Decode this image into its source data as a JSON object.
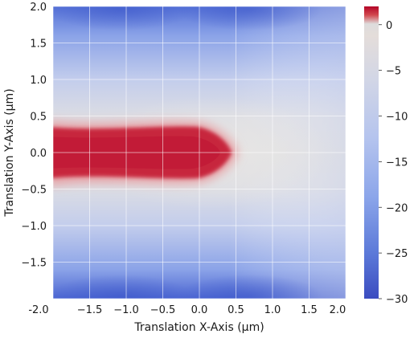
{
  "chart_data": {
    "type": "heatmap",
    "title": "",
    "xlabel": "Translation X-Axis (µm)",
    "ylabel": "Translation Y-Axis (µm)",
    "xlim": [
      -2.0,
      2.0
    ],
    "ylim": [
      -2.0,
      2.0
    ],
    "x_ticks": [
      "-2.0",
      "−1.5",
      "−1.0",
      "−0.5",
      "0.0",
      "0.5",
      "1.0",
      "1.5",
      "2.0"
    ],
    "y_ticks": [
      "2.0",
      "1.5",
      "1.0",
      "0.5",
      "0.0",
      "−0.5",
      "−1.0",
      "−1.5",
      "-2.0"
    ],
    "grid": true,
    "colormap": "coolwarm",
    "colorbar": {
      "min": -30,
      "max": 2,
      "ticks": [
        "0",
        "−5",
        "−10",
        "−15",
        "−20",
        "−25",
        "−30"
      ]
    },
    "regions": [
      {
        "description": "high-value lobe",
        "x_range": [
          -2.0,
          0.5
        ],
        "y_range": [
          -0.45,
          0.45
        ],
        "value": 2
      },
      {
        "description": "near-zero band",
        "x_range": [
          -2.0,
          2.0
        ],
        "y_range": [
          -0.7,
          0.7
        ],
        "value": 0
      },
      {
        "description": "low-value top edge",
        "y": 2.0,
        "value": -30
      },
      {
        "description": "low-value bottom edge",
        "y": -2.0,
        "value": -30
      }
    ]
  }
}
